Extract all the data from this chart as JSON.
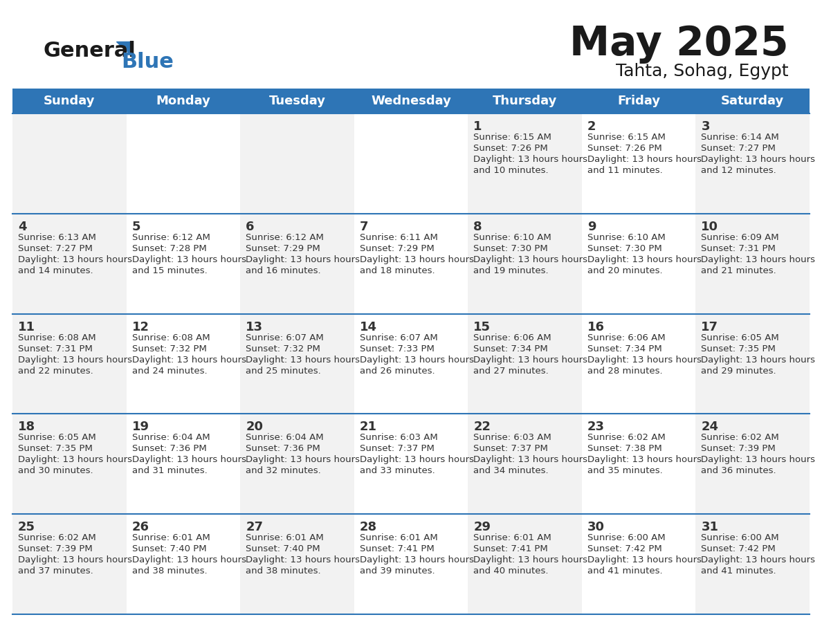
{
  "title": "May 2025",
  "subtitle": "Tahta, Sohag, Egypt",
  "header_color": "#2E75B6",
  "header_text_color": "#FFFFFF",
  "day_names": [
    "Sunday",
    "Monday",
    "Tuesday",
    "Wednesday",
    "Thursday",
    "Friday",
    "Saturday"
  ],
  "bg_color": "#FFFFFF",
  "cell_bg_even": "#F2F2F2",
  "cell_bg_odd": "#FFFFFF",
  "row_line_color": "#2E75B6",
  "text_color": "#333333",
  "calendar": [
    [
      null,
      null,
      null,
      null,
      {
        "day": 1,
        "sunrise": "6:15 AM",
        "sunset": "7:26 PM",
        "daylight": "13 hours and 10 minutes."
      },
      {
        "day": 2,
        "sunrise": "6:15 AM",
        "sunset": "7:26 PM",
        "daylight": "13 hours and 11 minutes."
      },
      {
        "day": 3,
        "sunrise": "6:14 AM",
        "sunset": "7:27 PM",
        "daylight": "13 hours and 12 minutes."
      }
    ],
    [
      {
        "day": 4,
        "sunrise": "6:13 AM",
        "sunset": "7:27 PM",
        "daylight": "13 hours and 14 minutes."
      },
      {
        "day": 5,
        "sunrise": "6:12 AM",
        "sunset": "7:28 PM",
        "daylight": "13 hours and 15 minutes."
      },
      {
        "day": 6,
        "sunrise": "6:12 AM",
        "sunset": "7:29 PM",
        "daylight": "13 hours and 16 minutes."
      },
      {
        "day": 7,
        "sunrise": "6:11 AM",
        "sunset": "7:29 PM",
        "daylight": "13 hours and 18 minutes."
      },
      {
        "day": 8,
        "sunrise": "6:10 AM",
        "sunset": "7:30 PM",
        "daylight": "13 hours and 19 minutes."
      },
      {
        "day": 9,
        "sunrise": "6:10 AM",
        "sunset": "7:30 PM",
        "daylight": "13 hours and 20 minutes."
      },
      {
        "day": 10,
        "sunrise": "6:09 AM",
        "sunset": "7:31 PM",
        "daylight": "13 hours and 21 minutes."
      }
    ],
    [
      {
        "day": 11,
        "sunrise": "6:08 AM",
        "sunset": "7:31 PM",
        "daylight": "13 hours and 22 minutes."
      },
      {
        "day": 12,
        "sunrise": "6:08 AM",
        "sunset": "7:32 PM",
        "daylight": "13 hours and 24 minutes."
      },
      {
        "day": 13,
        "sunrise": "6:07 AM",
        "sunset": "7:32 PM",
        "daylight": "13 hours and 25 minutes."
      },
      {
        "day": 14,
        "sunrise": "6:07 AM",
        "sunset": "7:33 PM",
        "daylight": "13 hours and 26 minutes."
      },
      {
        "day": 15,
        "sunrise": "6:06 AM",
        "sunset": "7:34 PM",
        "daylight": "13 hours and 27 minutes."
      },
      {
        "day": 16,
        "sunrise": "6:06 AM",
        "sunset": "7:34 PM",
        "daylight": "13 hours and 28 minutes."
      },
      {
        "day": 17,
        "sunrise": "6:05 AM",
        "sunset": "7:35 PM",
        "daylight": "13 hours and 29 minutes."
      }
    ],
    [
      {
        "day": 18,
        "sunrise": "6:05 AM",
        "sunset": "7:35 PM",
        "daylight": "13 hours and 30 minutes."
      },
      {
        "day": 19,
        "sunrise": "6:04 AM",
        "sunset": "7:36 PM",
        "daylight": "13 hours and 31 minutes."
      },
      {
        "day": 20,
        "sunrise": "6:04 AM",
        "sunset": "7:36 PM",
        "daylight": "13 hours and 32 minutes."
      },
      {
        "day": 21,
        "sunrise": "6:03 AM",
        "sunset": "7:37 PM",
        "daylight": "13 hours and 33 minutes."
      },
      {
        "day": 22,
        "sunrise": "6:03 AM",
        "sunset": "7:37 PM",
        "daylight": "13 hours and 34 minutes."
      },
      {
        "day": 23,
        "sunrise": "6:02 AM",
        "sunset": "7:38 PM",
        "daylight": "13 hours and 35 minutes."
      },
      {
        "day": 24,
        "sunrise": "6:02 AM",
        "sunset": "7:39 PM",
        "daylight": "13 hours and 36 minutes."
      }
    ],
    [
      {
        "day": 25,
        "sunrise": "6:02 AM",
        "sunset": "7:39 PM",
        "daylight": "13 hours and 37 minutes."
      },
      {
        "day": 26,
        "sunrise": "6:01 AM",
        "sunset": "7:40 PM",
        "daylight": "13 hours and 38 minutes."
      },
      {
        "day": 27,
        "sunrise": "6:01 AM",
        "sunset": "7:40 PM",
        "daylight": "13 hours and 38 minutes."
      },
      {
        "day": 28,
        "sunrise": "6:01 AM",
        "sunset": "7:41 PM",
        "daylight": "13 hours and 39 minutes."
      },
      {
        "day": 29,
        "sunrise": "6:01 AM",
        "sunset": "7:41 PM",
        "daylight": "13 hours and 40 minutes."
      },
      {
        "day": 30,
        "sunrise": "6:00 AM",
        "sunset": "7:42 PM",
        "daylight": "13 hours and 41 minutes."
      },
      {
        "day": 31,
        "sunrise": "6:00 AM",
        "sunset": "7:42 PM",
        "daylight": "13 hours and 41 minutes."
      }
    ]
  ]
}
